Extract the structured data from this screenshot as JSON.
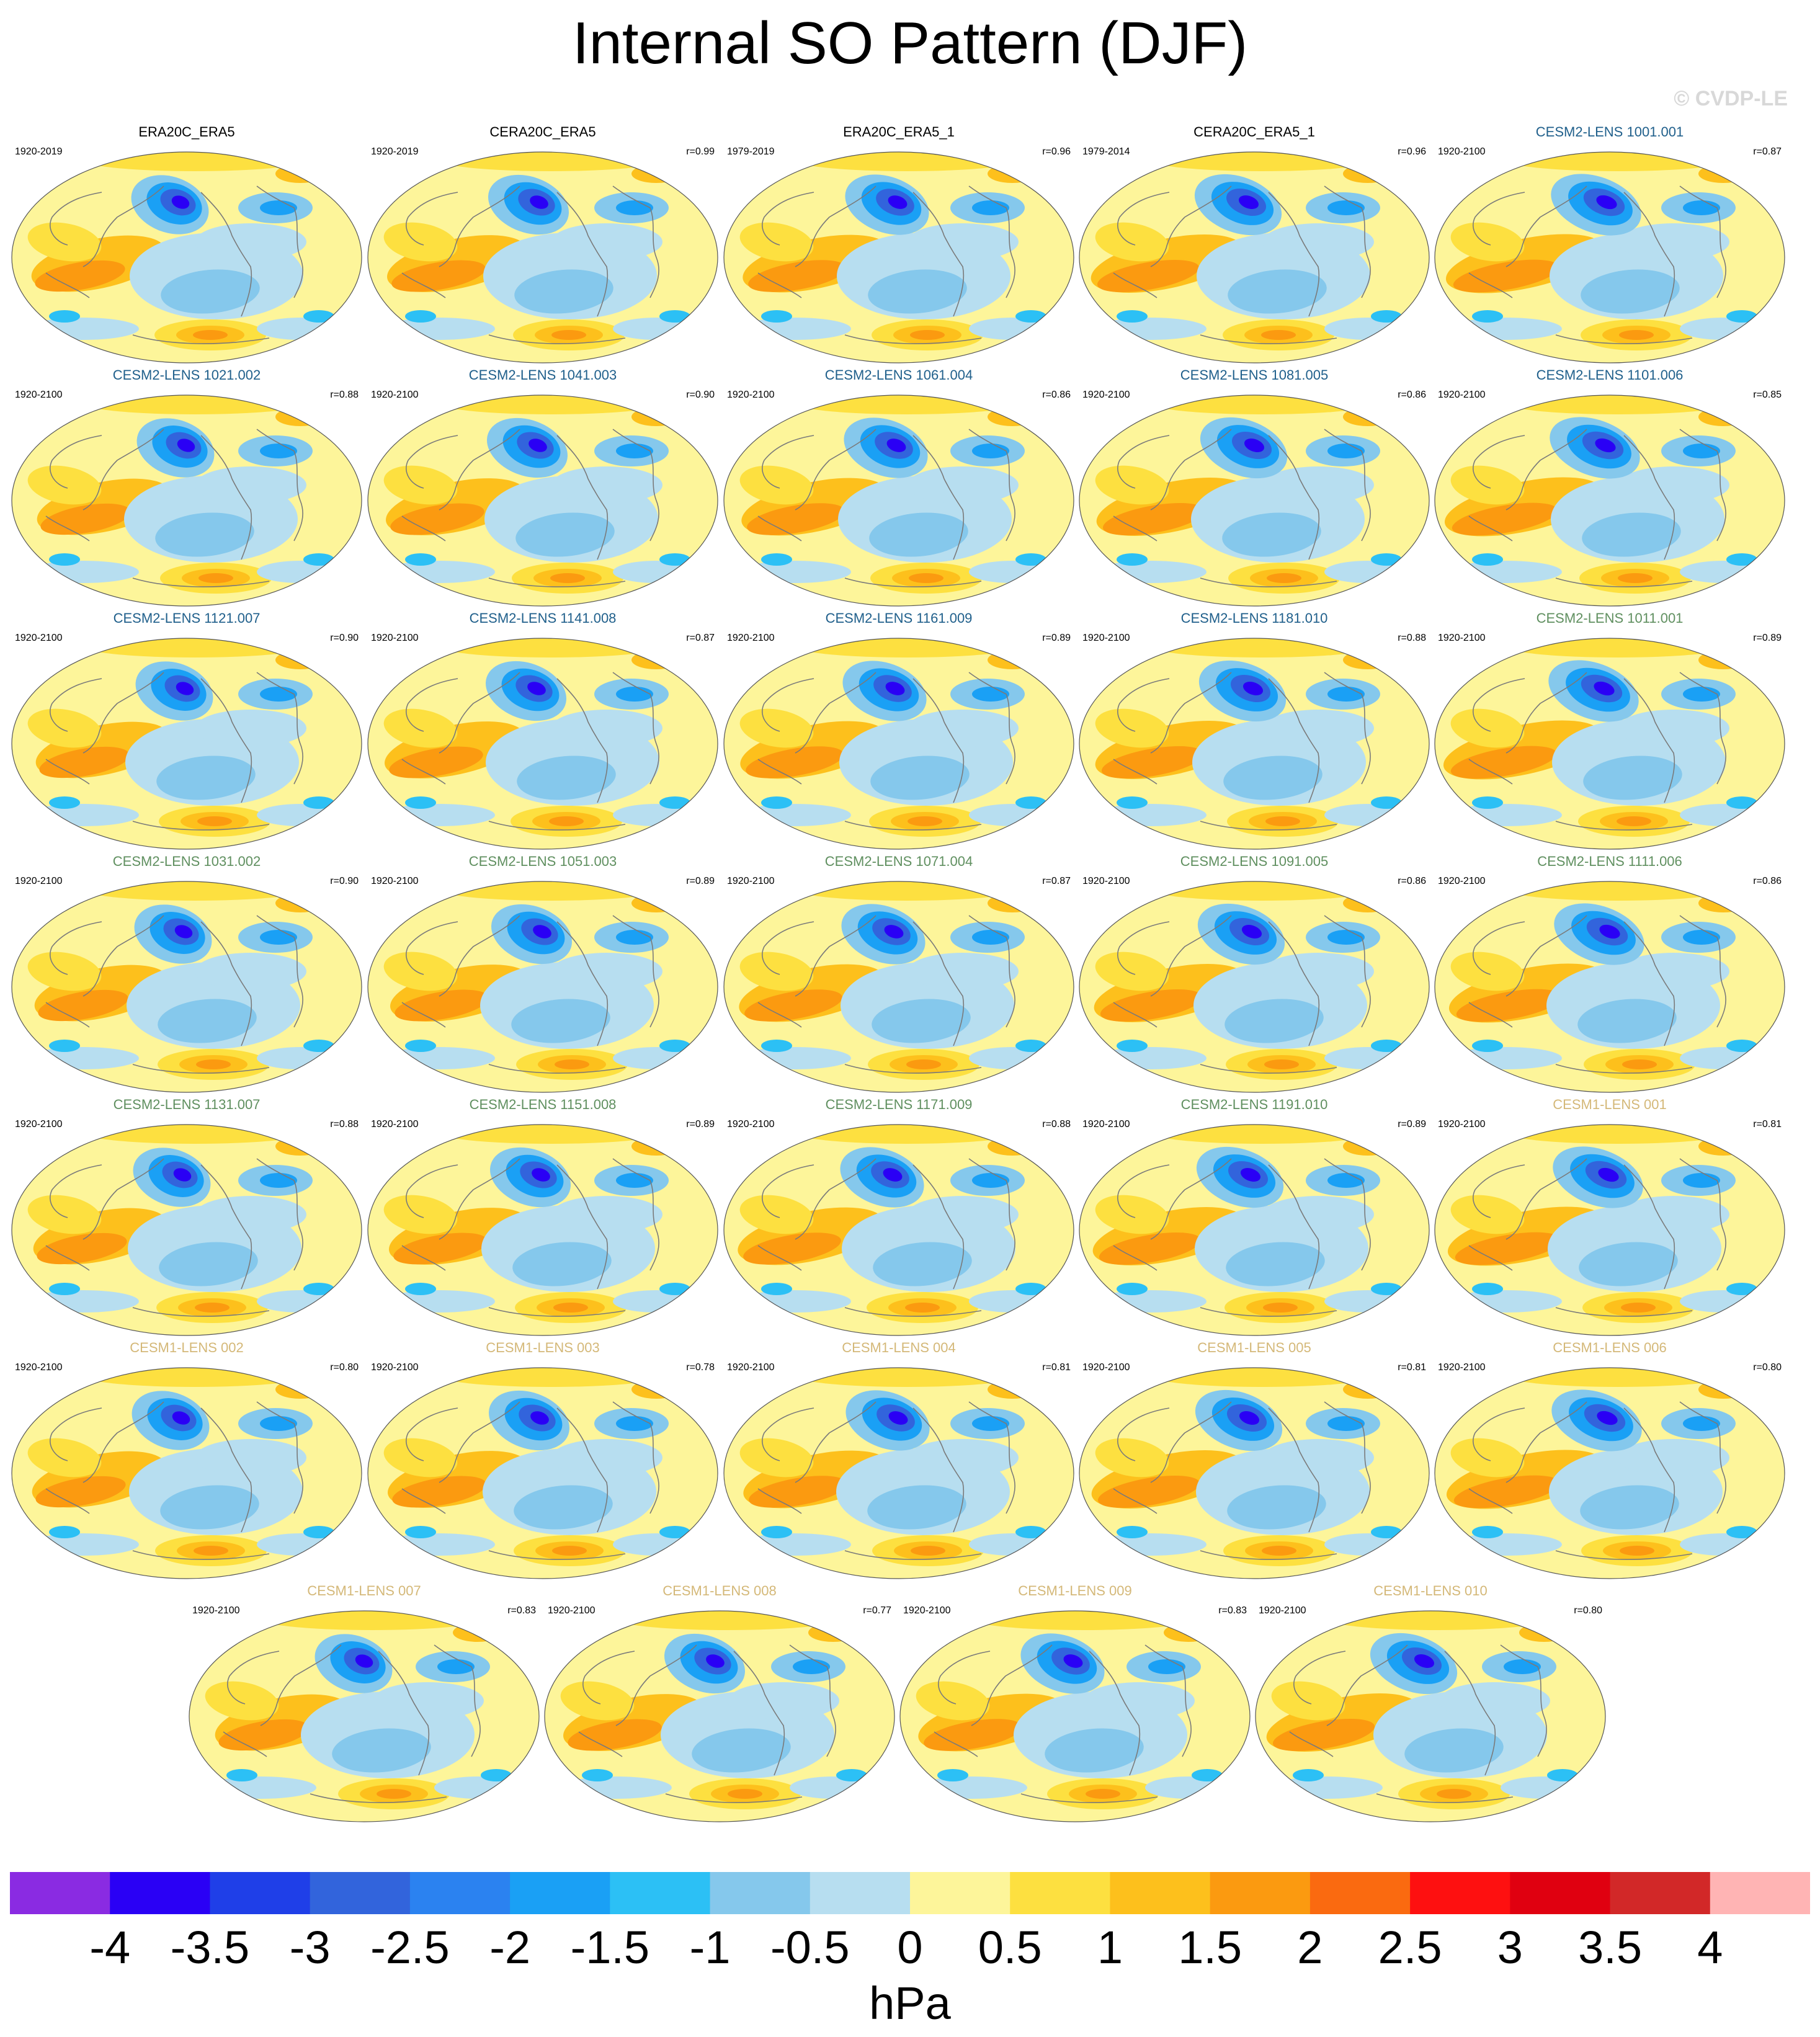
{
  "title": "Internal SO Pattern (DJF)",
  "copyright": "© CVDP-LE",
  "colors": {
    "obs_label": "#000000",
    "cesm2_smbb_label": "#1f5f8b",
    "cesm2_cmip6_label": "#5f8f5f",
    "cesm1_label": "#d4b878",
    "coastline": "#7a7a7a"
  },
  "chart_data": {
    "type": "map-panels",
    "projection": "global Robinson-style",
    "field": "sea level pressure anomaly",
    "panels": [
      {
        "label": "ERA20C_ERA5",
        "years": "1920-2019",
        "r": "",
        "group": "obs"
      },
      {
        "label": "CERA20C_ERA5",
        "years": "1920-2019",
        "r": "r=0.99",
        "group": "obs"
      },
      {
        "label": "ERA20C_ERA5_1",
        "years": "1979-2019",
        "r": "r=0.96",
        "group": "obs"
      },
      {
        "label": "CERA20C_ERA5_1",
        "years": "1979-2014",
        "r": "r=0.96",
        "group": "obs"
      },
      {
        "label": "CESM2-LENS 1001.001",
        "years": "1920-2100",
        "r": "r=0.87",
        "group": "cesm2_smbb"
      },
      {
        "label": "CESM2-LENS 1021.002",
        "years": "1920-2100",
        "r": "r=0.88",
        "group": "cesm2_smbb"
      },
      {
        "label": "CESM2-LENS 1041.003",
        "years": "1920-2100",
        "r": "r=0.90",
        "group": "cesm2_smbb"
      },
      {
        "label": "CESM2-LENS 1061.004",
        "years": "1920-2100",
        "r": "r=0.86",
        "group": "cesm2_smbb"
      },
      {
        "label": "CESM2-LENS 1081.005",
        "years": "1920-2100",
        "r": "r=0.86",
        "group": "cesm2_smbb"
      },
      {
        "label": "CESM2-LENS 1101.006",
        "years": "1920-2100",
        "r": "r=0.85",
        "group": "cesm2_smbb"
      },
      {
        "label": "CESM2-LENS 1121.007",
        "years": "1920-2100",
        "r": "r=0.90",
        "group": "cesm2_smbb"
      },
      {
        "label": "CESM2-LENS 1141.008",
        "years": "1920-2100",
        "r": "r=0.87",
        "group": "cesm2_smbb"
      },
      {
        "label": "CESM2-LENS 1161.009",
        "years": "1920-2100",
        "r": "r=0.89",
        "group": "cesm2_smbb"
      },
      {
        "label": "CESM2-LENS 1181.010",
        "years": "1920-2100",
        "r": "r=0.88",
        "group": "cesm2_smbb"
      },
      {
        "label": "CESM2-LENS 1011.001",
        "years": "1920-2100",
        "r": "r=0.89",
        "group": "cesm2_cmip6"
      },
      {
        "label": "CESM2-LENS 1031.002",
        "years": "1920-2100",
        "r": "r=0.90",
        "group": "cesm2_cmip6"
      },
      {
        "label": "CESM2-LENS 1051.003",
        "years": "1920-2100",
        "r": "r=0.89",
        "group": "cesm2_cmip6"
      },
      {
        "label": "CESM2-LENS 1071.004",
        "years": "1920-2100",
        "r": "r=0.87",
        "group": "cesm2_cmip6"
      },
      {
        "label": "CESM2-LENS 1091.005",
        "years": "1920-2100",
        "r": "r=0.86",
        "group": "cesm2_cmip6"
      },
      {
        "label": "CESM2-LENS 1111.006",
        "years": "1920-2100",
        "r": "r=0.86",
        "group": "cesm2_cmip6"
      },
      {
        "label": "CESM2-LENS 1131.007",
        "years": "1920-2100",
        "r": "r=0.88",
        "group": "cesm2_cmip6"
      },
      {
        "label": "CESM2-LENS 1151.008",
        "years": "1920-2100",
        "r": "r=0.89",
        "group": "cesm2_cmip6"
      },
      {
        "label": "CESM2-LENS 1171.009",
        "years": "1920-2100",
        "r": "r=0.88",
        "group": "cesm2_cmip6"
      },
      {
        "label": "CESM2-LENS 1191.010",
        "years": "1920-2100",
        "r": "r=0.89",
        "group": "cesm2_cmip6"
      },
      {
        "label": "CESM1-LENS 001",
        "years": "1920-2100",
        "r": "r=0.81",
        "group": "cesm1"
      },
      {
        "label": "CESM1-LENS 002",
        "years": "1920-2100",
        "r": "r=0.80",
        "group": "cesm1"
      },
      {
        "label": "CESM1-LENS 003",
        "years": "1920-2100",
        "r": "r=0.78",
        "group": "cesm1"
      },
      {
        "label": "CESM1-LENS 004",
        "years": "1920-2100",
        "r": "r=0.81",
        "group": "cesm1"
      },
      {
        "label": "CESM1-LENS 005",
        "years": "1920-2100",
        "r": "r=0.81",
        "group": "cesm1"
      },
      {
        "label": "CESM1-LENS 006",
        "years": "1920-2100",
        "r": "r=0.80",
        "group": "cesm1"
      },
      {
        "label": "CESM1-LENS 007",
        "years": "1920-2100",
        "r": "r=0.83",
        "group": "cesm1"
      },
      {
        "label": "CESM1-LENS 008",
        "years": "1920-2100",
        "r": "r=0.77",
        "group": "cesm1"
      },
      {
        "label": "CESM1-LENS 009",
        "years": "1920-2100",
        "r": "r=0.83",
        "group": "cesm1"
      },
      {
        "label": "CESM1-LENS 010",
        "years": "1920-2100",
        "r": "r=0.80",
        "group": "cesm1"
      }
    ],
    "colorbar": {
      "unit": "hPa",
      "tick_labels": [
        "-4",
        "-3.5",
        "-3",
        "-2.5",
        "-2",
        "-1.5",
        "-1",
        "-0.5",
        "0",
        "0.5",
        "1",
        "1.5",
        "2",
        "2.5",
        "3",
        "3.5",
        "4"
      ],
      "colors": [
        "#8a2be2",
        "#2a00f5",
        "#1f3fe8",
        "#3264dc",
        "#2b82f0",
        "#1aa0f5",
        "#2cc0f5",
        "#85c8ec",
        "#b7def0",
        "#fdf59a",
        "#fde040",
        "#fdc01c",
        "#fb9a10",
        "#fa6a10",
        "#fe1010",
        "#e00010",
        "#d22828",
        "#ffb4b4"
      ]
    }
  }
}
